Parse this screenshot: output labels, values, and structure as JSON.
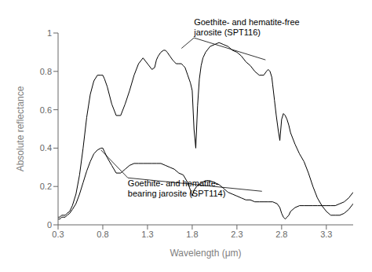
{
  "chart_data": {
    "type": "line",
    "xlabel": "Wavelength (μm)",
    "ylabel": "Absolute reflectance",
    "xlim": [
      0.3,
      3.6
    ],
    "ylim": [
      0.0,
      1.0
    ],
    "xticks": [
      0.3,
      0.8,
      1.3,
      1.8,
      2.3,
      2.8,
      3.3
    ],
    "yticks": [
      0,
      0.2,
      0.4,
      0.6,
      0.8,
      1
    ],
    "series": [
      {
        "color": "#000000",
        "x": [
          0.3,
          0.32,
          0.34,
          0.36,
          0.38,
          0.4,
          0.43,
          0.46,
          0.5,
          0.54,
          0.58,
          0.62,
          0.66,
          0.7,
          0.74,
          0.78,
          0.8,
          0.82,
          0.85,
          0.9,
          0.95,
          1.0,
          1.05,
          1.1,
          1.15,
          1.2,
          1.25,
          1.3,
          1.35,
          1.38,
          1.4,
          1.42,
          1.45,
          1.48,
          1.5,
          1.52,
          1.55,
          1.58,
          1.6,
          1.62,
          1.65,
          1.68,
          1.7,
          1.72,
          1.75,
          1.78,
          1.8,
          1.82,
          1.84,
          1.86,
          1.88,
          1.9,
          1.92,
          1.95,
          2.0,
          2.05,
          2.1,
          2.15,
          2.2,
          2.25,
          2.3,
          2.35,
          2.4,
          2.45,
          2.5,
          2.55,
          2.6,
          2.63,
          2.65,
          2.67,
          2.69,
          2.7,
          2.72,
          2.74,
          2.76,
          2.78,
          2.8,
          2.82,
          2.84,
          2.86,
          2.88,
          2.9,
          2.95,
          3.0,
          3.05,
          3.1,
          3.15,
          3.2,
          3.25,
          3.3,
          3.35,
          3.4,
          3.45,
          3.5,
          3.55,
          3.6
        ],
        "values": [
          0.04,
          0.04,
          0.05,
          0.05,
          0.05,
          0.06,
          0.07,
          0.1,
          0.16,
          0.26,
          0.4,
          0.56,
          0.68,
          0.75,
          0.78,
          0.78,
          0.78,
          0.76,
          0.72,
          0.63,
          0.57,
          0.57,
          0.63,
          0.7,
          0.78,
          0.84,
          0.87,
          0.84,
          0.81,
          0.82,
          0.86,
          0.88,
          0.9,
          0.91,
          0.91,
          0.9,
          0.88,
          0.86,
          0.85,
          0.84,
          0.84,
          0.84,
          0.83,
          0.82,
          0.78,
          0.74,
          0.7,
          0.5,
          0.4,
          0.62,
          0.76,
          0.83,
          0.87,
          0.9,
          0.93,
          0.94,
          0.95,
          0.94,
          0.93,
          0.91,
          0.9,
          0.88,
          0.85,
          0.83,
          0.8,
          0.78,
          0.78,
          0.8,
          0.81,
          0.8,
          0.77,
          0.73,
          0.65,
          0.57,
          0.5,
          0.44,
          0.55,
          0.58,
          0.57,
          0.55,
          0.52,
          0.48,
          0.42,
          0.37,
          0.33,
          0.27,
          0.2,
          0.14,
          0.1,
          0.07,
          0.05,
          0.05,
          0.05,
          0.06,
          0.08,
          0.11
        ]
      },
      {
        "color": "#000000",
        "x": [
          0.3,
          0.32,
          0.34,
          0.36,
          0.38,
          0.4,
          0.43,
          0.46,
          0.5,
          0.54,
          0.58,
          0.62,
          0.66,
          0.7,
          0.74,
          0.78,
          0.8,
          0.82,
          0.85,
          0.9,
          0.95,
          1.0,
          1.05,
          1.1,
          1.15,
          1.2,
          1.25,
          1.3,
          1.35,
          1.4,
          1.45,
          1.5,
          1.55,
          1.6,
          1.65,
          1.7,
          1.75,
          1.78,
          1.8,
          1.82,
          1.85,
          1.9,
          1.95,
          2.0,
          2.05,
          2.1,
          2.15,
          2.2,
          2.25,
          2.3,
          2.35,
          2.4,
          2.45,
          2.5,
          2.55,
          2.6,
          2.65,
          2.7,
          2.75,
          2.78,
          2.8,
          2.82,
          2.84,
          2.86,
          2.88,
          2.9,
          2.95,
          3.0,
          3.05,
          3.1,
          3.15,
          3.2,
          3.25,
          3.3,
          3.35,
          3.4,
          3.45,
          3.5,
          3.55,
          3.6
        ],
        "values": [
          0.03,
          0.03,
          0.04,
          0.04,
          0.04,
          0.05,
          0.06,
          0.08,
          0.11,
          0.16,
          0.22,
          0.28,
          0.33,
          0.37,
          0.39,
          0.4,
          0.4,
          0.38,
          0.35,
          0.31,
          0.27,
          0.27,
          0.29,
          0.31,
          0.32,
          0.32,
          0.32,
          0.32,
          0.32,
          0.32,
          0.32,
          0.31,
          0.3,
          0.29,
          0.27,
          0.26,
          0.22,
          0.18,
          0.15,
          0.18,
          0.2,
          0.22,
          0.23,
          0.23,
          0.22,
          0.21,
          0.19,
          0.17,
          0.16,
          0.15,
          0.14,
          0.13,
          0.13,
          0.12,
          0.12,
          0.12,
          0.12,
          0.12,
          0.11,
          0.09,
          0.06,
          0.04,
          0.03,
          0.04,
          0.05,
          0.07,
          0.09,
          0.1,
          0.1,
          0.1,
          0.1,
          0.1,
          0.1,
          0.1,
          0.1,
          0.1,
          0.11,
          0.12,
          0.14,
          0.17
        ]
      }
    ],
    "annotations": [
      {
        "text": "Goethite- and hematite-free\njarosite (SPT116)",
        "x": 1.82,
        "y": 0.975,
        "lines_to": [
          [
            1.68,
            0.92
          ],
          [
            2.62,
            0.86
          ]
        ]
      },
      {
        "text": "Goethite- and hematite-\nbearing jarosite (SPT114)",
        "x": 1.08,
        "y": 0.245,
        "lines_to": [
          [
            0.78,
            0.39
          ],
          [
            2.58,
            0.175
          ]
        ]
      }
    ]
  }
}
